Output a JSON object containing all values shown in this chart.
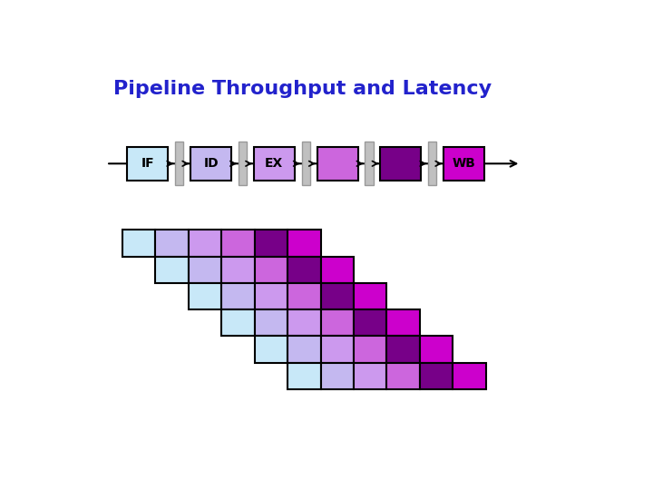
{
  "title": "Pipeline Throughput and Latency",
  "title_color": "#2222cc",
  "title_fontsize": 16,
  "bg_color": "#ffffff",
  "stage_labels": [
    "IF",
    "ID",
    "EX",
    "",
    "",
    "WB"
  ],
  "stage_colors": [
    "#c8e8f8",
    "#c4b8f0",
    "#cc99ee",
    "#cc66dd",
    "#770088",
    "#cc00cc"
  ],
  "num_instructions": 6,
  "num_stages": 6,
  "grid_colors": [
    "#c8e8f8",
    "#c4b8f0",
    "#cc99ee",
    "#cc66dd",
    "#770088",
    "#cc00cc"
  ]
}
